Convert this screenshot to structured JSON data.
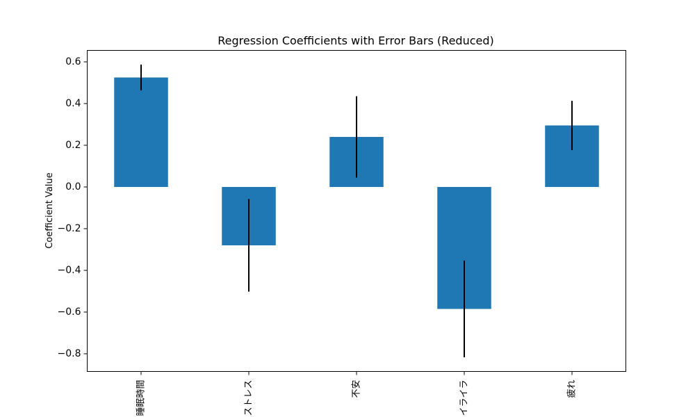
{
  "chart_data": {
    "type": "bar",
    "title": "Regression Coefficients with Error Bars (Reduced)",
    "xlabel": "",
    "ylabel": "Coefficient Value",
    "categories": [
      "睡眠時間",
      "ストレス",
      "不安",
      "イライラ",
      "疲れ"
    ],
    "values": [
      0.525,
      -0.28,
      0.24,
      -0.585,
      0.295
    ],
    "errors": [
      0.062,
      0.222,
      0.195,
      0.232,
      0.118
    ],
    "ylim": [
      -0.885,
      0.655
    ],
    "yticks": [
      0.6,
      0.4,
      0.2,
      0.0,
      -0.2,
      -0.4,
      -0.6,
      -0.8
    ],
    "ytick_labels": [
      "0.6",
      "0.4",
      "0.2",
      "0.0",
      "−0.2",
      "−0.4",
      "−0.6",
      "−0.8"
    ],
    "grid": false,
    "legend": "none",
    "colors": {
      "bar": "#1f77b4",
      "errorbar": "#000000",
      "axis": "#000000"
    }
  }
}
